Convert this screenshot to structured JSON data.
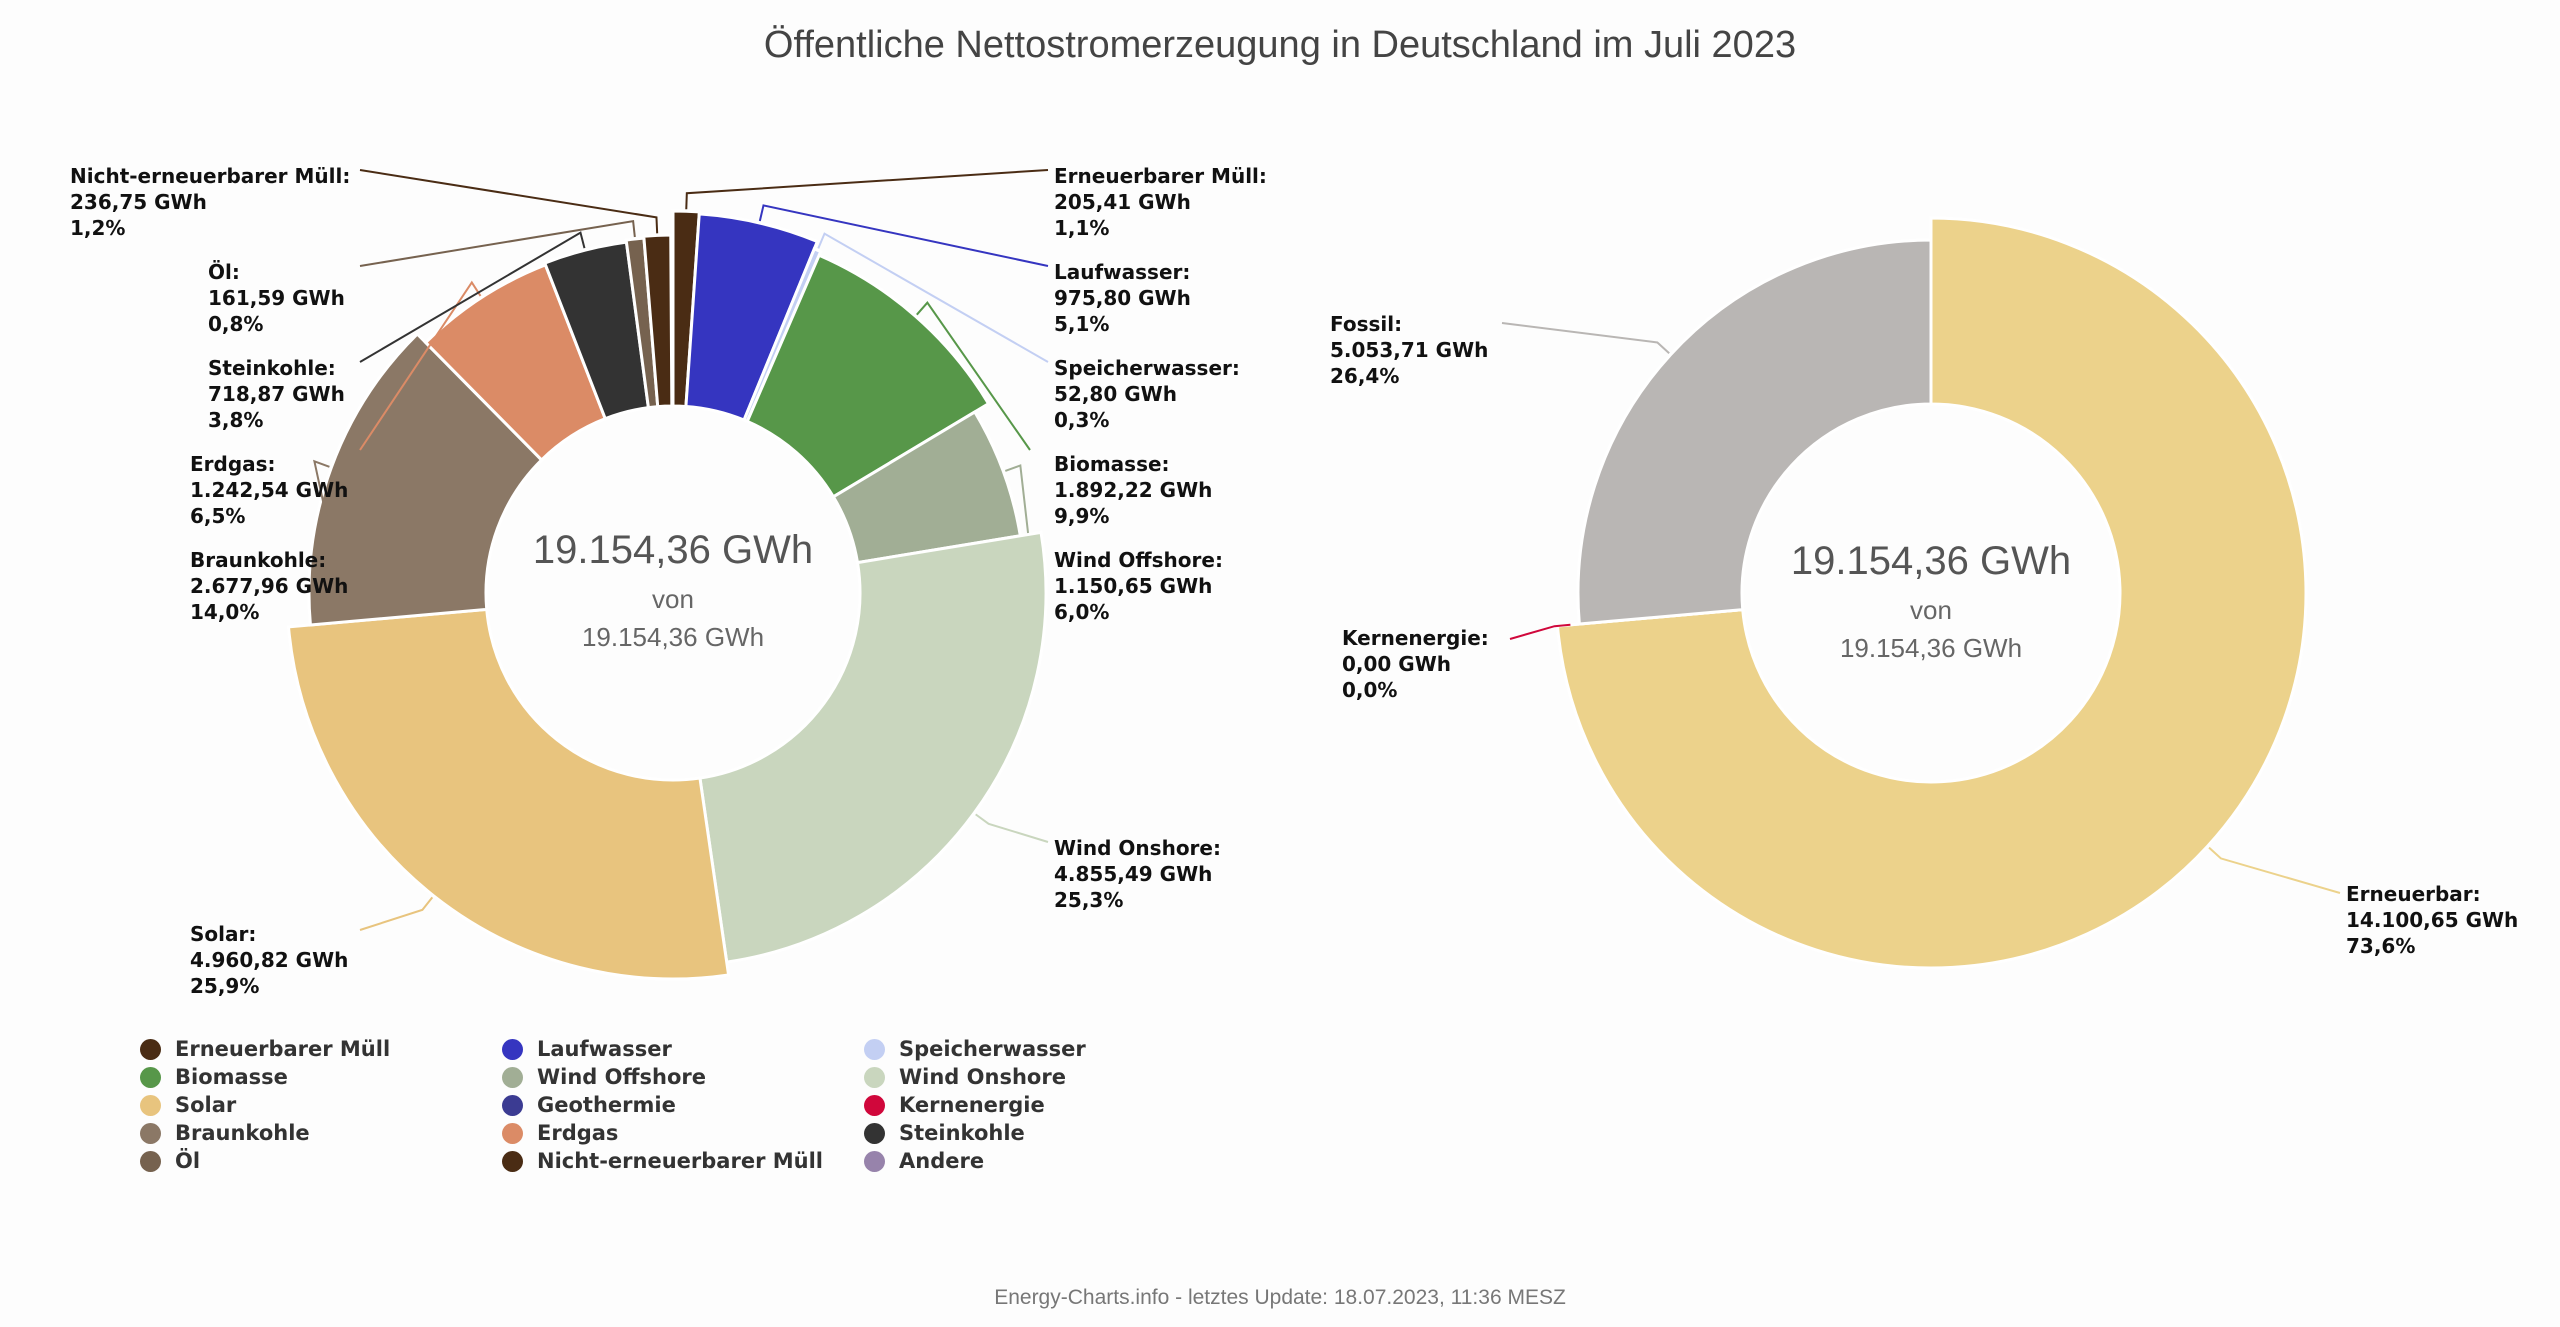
{
  "title": "Öffentliche Nettostromerzeugung in Deutschland im Juli 2023",
  "footer": "Energy-Charts.info - letztes Update: 18.07.2023, 11:36 MESZ",
  "chart_data": [
    {
      "type": "pie",
      "variant": "donut-variable-radius",
      "title": "Öffentliche Nettostromerzeugung in Deutschland im Juli 2023",
      "unit": "GWh",
      "center_text": {
        "value": "19.154,36 GWh",
        "connector": "von",
        "total": "19.154,36 GWh"
      },
      "slices": [
        {
          "name": "Erneuerbarer Müll",
          "value": 205.41,
          "value_label": "205,41 GWh",
          "percent": 1.1,
          "percent_label": "1,1%",
          "color": "#4a2c14",
          "label_side": "right"
        },
        {
          "name": "Laufwasser",
          "value": 975.8,
          "value_label": "975,80 GWh",
          "percent": 5.1,
          "percent_label": "5,1%",
          "color": "#3535c0",
          "label_side": "right"
        },
        {
          "name": "Speicherwasser",
          "value": 52.8,
          "value_label": "52,80 GWh",
          "percent": 0.3,
          "percent_label": "0,3%",
          "color": "#c3cff3",
          "label_side": "right"
        },
        {
          "name": "Biomasse",
          "value": 1892.22,
          "value_label": "1.892,22 GWh",
          "percent": 9.9,
          "percent_label": "9,9%",
          "color": "#579749",
          "label_side": "right"
        },
        {
          "name": "Wind Offshore",
          "value": 1150.65,
          "value_label": "1.150,65 GWh",
          "percent": 6.0,
          "percent_label": "6,0%",
          "color": "#a1ae95",
          "label_side": "right"
        },
        {
          "name": "Wind Onshore",
          "value": 4855.49,
          "value_label": "4.855,49 GWh",
          "percent": 25.3,
          "percent_label": "25,3%",
          "color": "#c9d6be",
          "label_side": "right"
        },
        {
          "name": "Solar",
          "value": 4960.82,
          "value_label": "4.960,82 GWh",
          "percent": 25.9,
          "percent_label": "25,9%",
          "color": "#e8c47e",
          "label_side": "left"
        },
        {
          "name": "Braunkohle",
          "value": 2677.96,
          "value_label": "2.677,96 GWh",
          "percent": 14.0,
          "percent_label": "14,0%",
          "color": "#8b7866",
          "label_side": "left"
        },
        {
          "name": "Erdgas",
          "value": 1242.54,
          "value_label": "1.242,54 GWh",
          "percent": 6.5,
          "percent_label": "6,5%",
          "color": "#db8b66",
          "label_side": "left"
        },
        {
          "name": "Steinkohle",
          "value": 718.87,
          "value_label": "718,87 GWh",
          "percent": 3.8,
          "percent_label": "3,8%",
          "color": "#333333",
          "label_side": "left"
        },
        {
          "name": "Öl",
          "value": 161.59,
          "value_label": "161,59 GWh",
          "percent": 0.8,
          "percent_label": "0,8%",
          "color": "#76624f",
          "label_side": "left"
        },
        {
          "name": "Nicht-erneuerbarer Müll",
          "value": 236.75,
          "value_label": "236,75 GWh",
          "percent": 1.2,
          "percent_label": "1,2%",
          "color": "#4a2c14",
          "label_side": "left"
        }
      ]
    },
    {
      "type": "pie",
      "variant": "donut",
      "unit": "GWh",
      "center_text": {
        "value": "19.154,36 GWh",
        "connector": "von",
        "total": "19.154,36 GWh"
      },
      "slices": [
        {
          "name": "Erneuerbar",
          "value": 14100.65,
          "value_label": "14.100,65 GWh",
          "percent": 73.6,
          "percent_label": "73,6%",
          "color": "#ecd28b",
          "label_side": "right"
        },
        {
          "name": "Kernenergie",
          "value": 0.0,
          "value_label": "0,00 GWh",
          "percent": 0.0,
          "percent_label": "0,0%",
          "color": "#d0073b",
          "label_side": "left"
        },
        {
          "name": "Fossil",
          "value": 5053.71,
          "value_label": "5.053,71 GWh",
          "percent": 26.4,
          "percent_label": "26,4%",
          "color": "#b9b6b4",
          "label_side": "left"
        }
      ]
    }
  ],
  "legend": {
    "position": "bottom-left",
    "items": [
      {
        "label": "Erneuerbarer Müll",
        "color": "#4a2c14"
      },
      {
        "label": "Laufwasser",
        "color": "#3535c0"
      },
      {
        "label": "Speicherwasser",
        "color": "#c3cff3"
      },
      {
        "label": "Biomasse",
        "color": "#579749"
      },
      {
        "label": "Wind Offshore",
        "color": "#a1ae95"
      },
      {
        "label": "Wind Onshore",
        "color": "#c9d6be"
      },
      {
        "label": "Solar",
        "color": "#e8c47e"
      },
      {
        "label": "Geothermie",
        "color": "#3b3b92"
      },
      {
        "label": "Kernenergie",
        "color": "#d0073b"
      },
      {
        "label": "Braunkohle",
        "color": "#8b7866"
      },
      {
        "label": "Erdgas",
        "color": "#db8b66"
      },
      {
        "label": "Steinkohle",
        "color": "#333333"
      },
      {
        "label": "Öl",
        "color": "#76624f"
      },
      {
        "label": "Nicht-erneuerbarer Müll",
        "color": "#4a2c14"
      },
      {
        "label": "Andere",
        "color": "#9783ab"
      }
    ]
  }
}
